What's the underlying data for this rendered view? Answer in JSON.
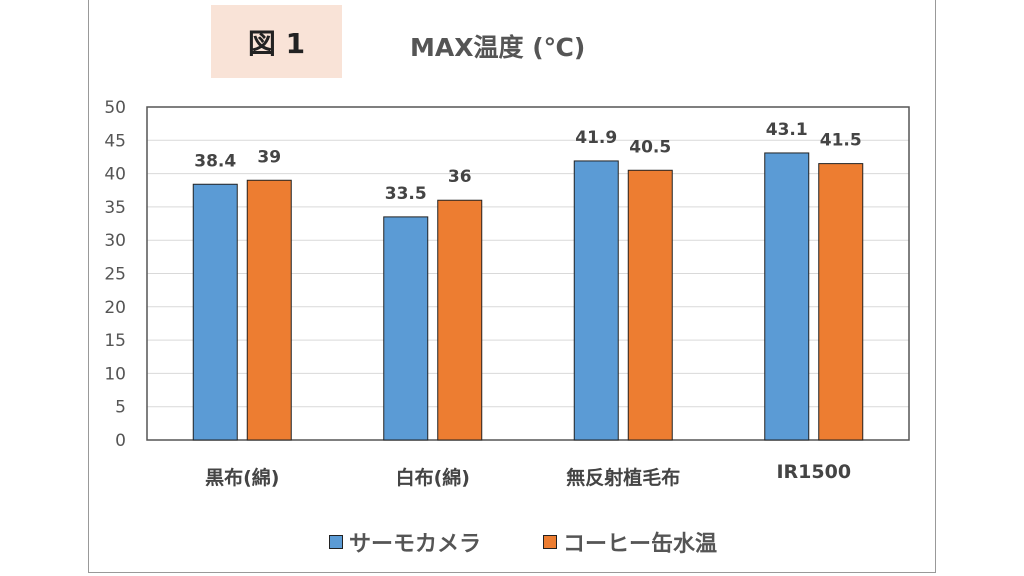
{
  "figure_label": "図 1",
  "chart_data": {
    "type": "bar",
    "title": "MAX温度 (℃)",
    "categories": [
      "黒布(綿)",
      "白布(綿)",
      "無反射植毛布",
      "IR1500"
    ],
    "series": [
      {
        "name": "サーモカメラ",
        "values": [
          38.4,
          33.5,
          41.9,
          43.1
        ],
        "labels": [
          "38.4",
          "33.5",
          "41.9",
          "43.1"
        ],
        "color": "#5b9bd5"
      },
      {
        "name": "コーヒー缶水温",
        "values": [
          39,
          36,
          40.5,
          41.5
        ],
        "labels": [
          "39",
          "36",
          "40.5",
          "41.5"
        ],
        "color": "#ed7d31"
      }
    ],
    "ylim": [
      0,
      50
    ],
    "yticks": [
      "0",
      "5",
      "10",
      "15",
      "20",
      "25",
      "30",
      "35",
      "40",
      "45",
      "50"
    ],
    "grid": true,
    "legend": "bottom",
    "data_labels": true
  }
}
